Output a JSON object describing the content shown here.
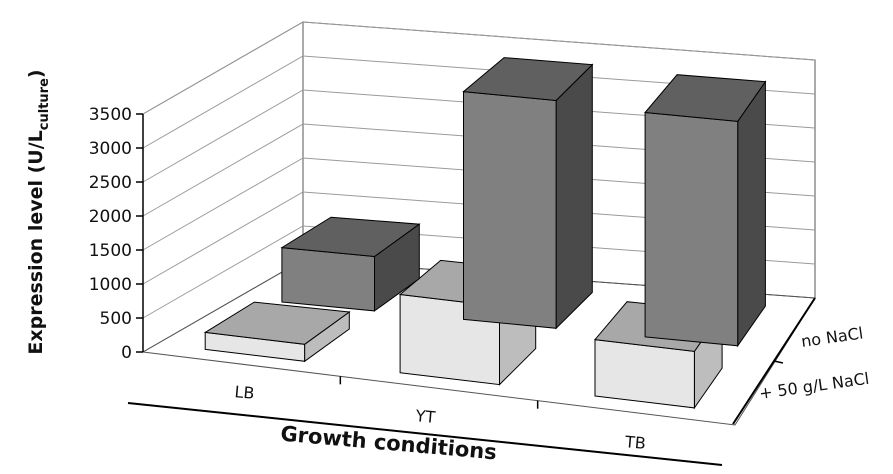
{
  "chart_data": {
    "type": "bar3d",
    "categories": [
      "LB",
      "YT",
      "TB"
    ],
    "series": [
      {
        "name": "no NaCl",
        "values": [
          800,
          3350,
          3300
        ],
        "front": "#808080",
        "top": "#606060",
        "side": "#4a4a4a"
      },
      {
        "name": "+ 50 g/L NaCl",
        "values": [
          250,
          1150,
          830
        ],
        "front": "#e6e6e6",
        "top": "#a8a8a8",
        "side": "#bdbdbd"
      }
    ],
    "ylabel_main": "Expression level (U/L",
    "ylabel_sub": "culture",
    "ylabel_close": ")",
    "xlabel": "Growth conditions",
    "yticks": [
      0,
      500,
      1000,
      1500,
      2000,
      2500,
      3000,
      3500
    ],
    "ylim": [
      0,
      3500
    ],
    "grid": true
  }
}
